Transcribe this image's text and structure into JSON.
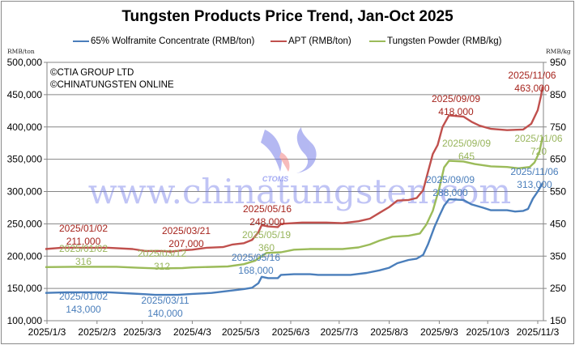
{
  "chart_data": {
    "type": "line",
    "title": "Tungsten Products Price Trend, Jan-Oct 2025",
    "xlabel": "",
    "ylabel": "RMB/ton",
    "y2label": "RMB/kg",
    "ylim": [
      100000,
      500000
    ],
    "y2lim": [
      150,
      950
    ],
    "grid": true,
    "legend_position": "top",
    "x_ticks": [
      "2025/1/3",
      "2025/2/3",
      "2025/3/3",
      "2025/4/3",
      "2025/5/3",
      "2025/6/3",
      "2025/7/3",
      "2025/8/3",
      "2025/9/3",
      "2025/10/3",
      "2025/11/3"
    ],
    "y_ticks": [
      "100,000",
      "150,000",
      "200,000",
      "250,000",
      "300,000",
      "350,000",
      "400,000",
      "450,000",
      "500,000"
    ],
    "y2_ticks": [
      "150",
      "250",
      "350",
      "450",
      "550",
      "650",
      "750",
      "850",
      "950"
    ],
    "series": [
      {
        "name": "65% Wolframite Concentrate (RMB/ton)",
        "axis": "left",
        "color": "#4a7ebb",
        "points": [
          [
            "2025-01-02",
            143000
          ],
          [
            "2025-01-15",
            144000
          ],
          [
            "2025-02-10",
            144000
          ],
          [
            "2025-02-25",
            142000
          ],
          [
            "2025-03-05",
            141000
          ],
          [
            "2025-03-11",
            140000
          ],
          [
            "2025-03-25",
            140000
          ],
          [
            "2025-04-03",
            141500
          ],
          [
            "2025-04-15",
            143000
          ],
          [
            "2025-04-25",
            146000
          ],
          [
            "2025-05-05",
            149000
          ],
          [
            "2025-05-10",
            151000
          ],
          [
            "2025-05-14",
            158000
          ],
          [
            "2025-05-16",
            168000
          ],
          [
            "2025-05-20",
            166000
          ],
          [
            "2025-05-26",
            166000
          ],
          [
            "2025-05-28",
            171000
          ],
          [
            "2025-06-05",
            172000
          ],
          [
            "2025-06-15",
            172000
          ],
          [
            "2025-06-20",
            171000
          ],
          [
            "2025-07-10",
            171000
          ],
          [
            "2025-07-20",
            174000
          ],
          [
            "2025-07-28",
            178000
          ],
          [
            "2025-08-03",
            182000
          ],
          [
            "2025-08-08",
            189000
          ],
          [
            "2025-08-15",
            194000
          ],
          [
            "2025-08-20",
            196000
          ],
          [
            "2025-08-24",
            202000
          ],
          [
            "2025-08-27",
            218000
          ],
          [
            "2025-08-31",
            245000
          ],
          [
            "2025-09-03",
            262000
          ],
          [
            "2025-09-06",
            278000
          ],
          [
            "2025-09-09",
            288000
          ],
          [
            "2025-09-18",
            287000
          ],
          [
            "2025-09-23",
            280000
          ],
          [
            "2025-09-30",
            275000
          ],
          [
            "2025-10-05",
            271000
          ],
          [
            "2025-10-15",
            271000
          ],
          [
            "2025-10-20",
            269000
          ],
          [
            "2025-10-25",
            270000
          ],
          [
            "2025-10-28",
            273000
          ],
          [
            "2025-10-31",
            289000
          ],
          [
            "2025-11-03",
            300000
          ],
          [
            "2025-11-06",
            313000
          ]
        ],
        "annotations": [
          {
            "date": "2025/01/02",
            "value": "143,000"
          },
          {
            "date": "2025/03/11",
            "value": "140,000"
          },
          {
            "date": "2025/05/16",
            "value": "168,000"
          },
          {
            "date": "2025/09/09",
            "value": "288,000"
          },
          {
            "date": "2025/11/06",
            "value": "313,000"
          }
        ]
      },
      {
        "name": "APT (RMB/ton)",
        "axis": "left",
        "color": "#c0504d",
        "points": [
          [
            "2025-01-02",
            211000
          ],
          [
            "2025-01-12",
            213000
          ],
          [
            "2025-02-10",
            213000
          ],
          [
            "2025-02-25",
            211000
          ],
          [
            "2025-03-05",
            208000
          ],
          [
            "2025-03-15",
            208000
          ],
          [
            "2025-03-21",
            207000
          ],
          [
            "2025-03-28",
            209000
          ],
          [
            "2025-04-03",
            210000
          ],
          [
            "2025-04-12",
            213000
          ],
          [
            "2025-04-22",
            214000
          ],
          [
            "2025-04-28",
            218000
          ],
          [
            "2025-05-05",
            220000
          ],
          [
            "2025-05-10",
            225000
          ],
          [
            "2025-05-14",
            237000
          ],
          [
            "2025-05-16",
            248000
          ],
          [
            "2025-05-20",
            246000
          ],
          [
            "2025-05-26",
            245000
          ],
          [
            "2025-05-28",
            250000
          ],
          [
            "2025-06-10",
            252000
          ],
          [
            "2025-06-25",
            252000
          ],
          [
            "2025-07-05",
            251000
          ],
          [
            "2025-07-15",
            254000
          ],
          [
            "2025-07-22",
            258000
          ],
          [
            "2025-07-28",
            267000
          ],
          [
            "2025-08-03",
            276000
          ],
          [
            "2025-08-08",
            286000
          ],
          [
            "2025-08-15",
            287000
          ],
          [
            "2025-08-20",
            290000
          ],
          [
            "2025-08-24",
            302000
          ],
          [
            "2025-08-27",
            330000
          ],
          [
            "2025-08-30",
            358000
          ],
          [
            "2025-09-02",
            372000
          ],
          [
            "2025-09-05",
            400000
          ],
          [
            "2025-09-09",
            418000
          ],
          [
            "2025-09-18",
            416000
          ],
          [
            "2025-09-23",
            408000
          ],
          [
            "2025-09-28",
            402000
          ],
          [
            "2025-10-05",
            397000
          ],
          [
            "2025-10-15",
            395000
          ],
          [
            "2025-10-25",
            396000
          ],
          [
            "2025-10-30",
            405000
          ],
          [
            "2025-11-03",
            426000
          ],
          [
            "2025-11-05",
            448000
          ],
          [
            "2025-11-06",
            463000
          ]
        ],
        "annotations": [
          {
            "date": "2025/01/02",
            "value": "211,000"
          },
          {
            "date": "2025/03/21",
            "value": "207,000"
          },
          {
            "date": "2025/05/16",
            "value": "248,000"
          },
          {
            "date": "2025/09/09",
            "value": "418,000"
          },
          {
            "date": "2025/11/06",
            "value": "463,000"
          }
        ]
      },
      {
        "name": "Tungsten Powder (RMB/kg)",
        "axis": "right",
        "color": "#9bbb59",
        "points": [
          [
            "2025-01-02",
            316
          ],
          [
            "2025-01-20",
            317
          ],
          [
            "2025-02-15",
            317
          ],
          [
            "2025-02-28",
            314
          ],
          [
            "2025-03-12",
            312
          ],
          [
            "2025-03-28",
            313
          ],
          [
            "2025-04-03",
            315
          ],
          [
            "2025-04-25",
            318
          ],
          [
            "2025-05-05",
            325
          ],
          [
            "2025-05-12",
            336
          ],
          [
            "2025-05-19",
            360
          ],
          [
            "2025-05-28",
            362
          ],
          [
            "2025-06-05",
            370
          ],
          [
            "2025-06-15",
            372
          ],
          [
            "2025-07-05",
            372
          ],
          [
            "2025-07-15",
            377
          ],
          [
            "2025-07-22",
            386
          ],
          [
            "2025-07-28",
            398
          ],
          [
            "2025-08-05",
            410
          ],
          [
            "2025-08-15",
            413
          ],
          [
            "2025-08-22",
            420
          ],
          [
            "2025-08-26",
            448
          ],
          [
            "2025-08-30",
            490
          ],
          [
            "2025-09-03",
            560
          ],
          [
            "2025-09-06",
            625
          ],
          [
            "2025-09-09",
            645
          ],
          [
            "2025-09-18",
            643
          ],
          [
            "2025-09-25",
            635
          ],
          [
            "2025-10-05",
            628
          ],
          [
            "2025-10-15",
            626
          ],
          [
            "2025-10-22",
            622
          ],
          [
            "2025-10-29",
            626
          ],
          [
            "2025-11-01",
            640
          ],
          [
            "2025-11-04",
            672
          ],
          [
            "2025-11-06",
            720
          ]
        ],
        "annotations": [
          {
            "date": "2025/01/02",
            "value": "316"
          },
          {
            "date": "2025/03/12",
            "value": "312"
          },
          {
            "date": "2025/05/19",
            "value": "360"
          },
          {
            "date": "2025/09/09",
            "value": "645"
          },
          {
            "date": "2025/11/06",
            "value": "720"
          }
        ]
      }
    ],
    "copyright": [
      "©CTIA GROUP LTD",
      "©CHINATUNGSTEN ONLINE"
    ],
    "watermark": {
      "url_text": "www.chinatungsten.com",
      "logo_text": "CTOMS"
    }
  },
  "header": {
    "title": "Tungsten Products Price Trend, Jan-Oct 2025",
    "left_unit": "RMB/ton",
    "right_unit": "RMB/kg"
  },
  "legend": {
    "items": [
      {
        "label": "65% Wolframite Concentrate (RMB/ton)",
        "color": "#4a7ebb"
      },
      {
        "label": "APT (RMB/ton)",
        "color": "#c0504d"
      },
      {
        "label": "Tungsten Powder (RMB/kg)",
        "color": "#9bbb59"
      }
    ]
  },
  "annotation_colors": {
    "blue": "#4a7ebb",
    "red": "#a6241d",
    "green": "#98b55c"
  }
}
